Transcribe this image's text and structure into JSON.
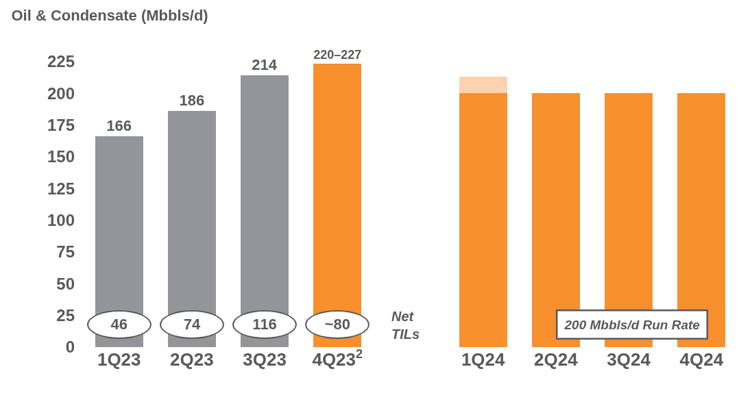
{
  "chart_data": {
    "type": "bar",
    "title": "Oil & Condensate (Mbbls/d)",
    "categories": [
      "1Q23",
      "2Q23",
      "3Q23",
      "4Q23$^{2}$",
      null,
      "1Q24",
      "2Q24",
      "3Q24",
      "4Q24"
    ],
    "stacked": true,
    "series": [
      {
        "colors": [
          "#939598",
          "#939598",
          "#939598",
          "#f7902d",
          null,
          "#f7902d",
          "#f7902d",
          "#f7902d",
          "#f7902d"
        ],
        "values": [
          166,
          186,
          214,
          223.5,
          null,
          200,
          200,
          200,
          200
        ],
        "value_labels": [
          "166",
          "186",
          "214",
          "220–227",
          null,
          null,
          null,
          null,
          null
        ]
      },
      {
        "color": "#fcd3ae",
        "values": [
          null,
          null,
          null,
          null,
          null,
          13,
          null,
          null,
          null
        ]
      }
    ],
    "ylim": [
      0,
      225
    ],
    "yticks": [
      0,
      25,
      50,
      75,
      100,
      125,
      150,
      175,
      200,
      225
    ],
    "grid": false,
    "annotations": [
      "46",
      "74",
      "116",
      "~80",
      "Net TILs",
      "200 Mbbls/d Run Rate"
    ]
  }
}
